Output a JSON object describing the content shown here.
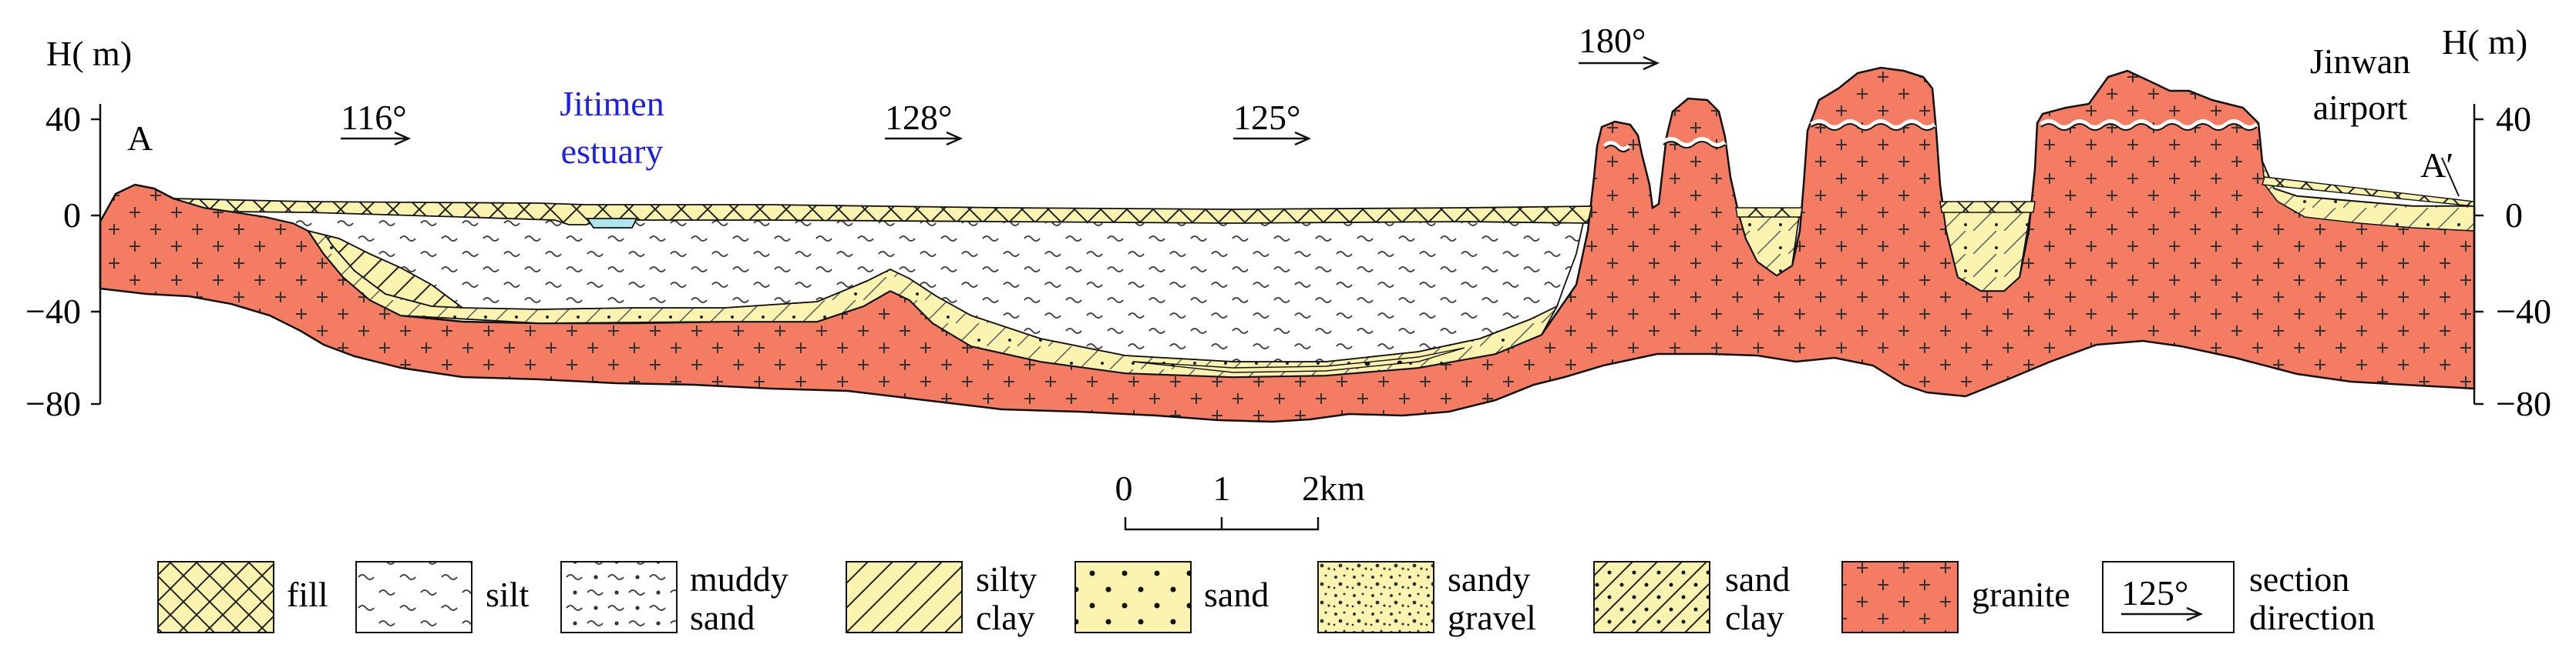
{
  "axis": {
    "left_label": "H( m)",
    "right_label": "H( m)",
    "ticks": [
      "40",
      "0",
      "−40",
      "−80"
    ]
  },
  "points": {
    "start": "A",
    "end": "A′"
  },
  "place_labels": {
    "estuary_line1": "Jitimen",
    "estuary_line2": "estuary",
    "airport_line1": "Jinwan",
    "airport_line2": "airport"
  },
  "directions": [
    "116°",
    "128°",
    "125°",
    "180°"
  ],
  "scale_bar": {
    "labels": [
      "0",
      "1",
      "2km"
    ]
  },
  "legend": [
    {
      "label_1": "fill",
      "label_2": "",
      "pattern": "crosshatch"
    },
    {
      "label_1": "silt",
      "label_2": "",
      "pattern": "wave"
    },
    {
      "label_1": "muddy",
      "label_2": "sand",
      "pattern": "wave-dot"
    },
    {
      "label_1": "silty",
      "label_2": "clay",
      "pattern": "diagonal"
    },
    {
      "label_1": "sand",
      "label_2": "",
      "pattern": "dots"
    },
    {
      "label_1": "sandy",
      "label_2": "gravel",
      "pattern": "gravel"
    },
    {
      "label_1": "sand",
      "label_2": "clay",
      "pattern": "diagonal-dot"
    },
    {
      "label_1": "granite",
      "label_2": "",
      "pattern": "plus"
    },
    {
      "label_1": "section",
      "label_2": "direction",
      "pattern": "direction",
      "sample": "125°"
    }
  ],
  "colors": {
    "granite": "#f47c63",
    "sediment": "#fbf3b0",
    "estuary_water": "#aee6ee",
    "estuary_text": "#1f1fe0",
    "line": "#111111"
  }
}
